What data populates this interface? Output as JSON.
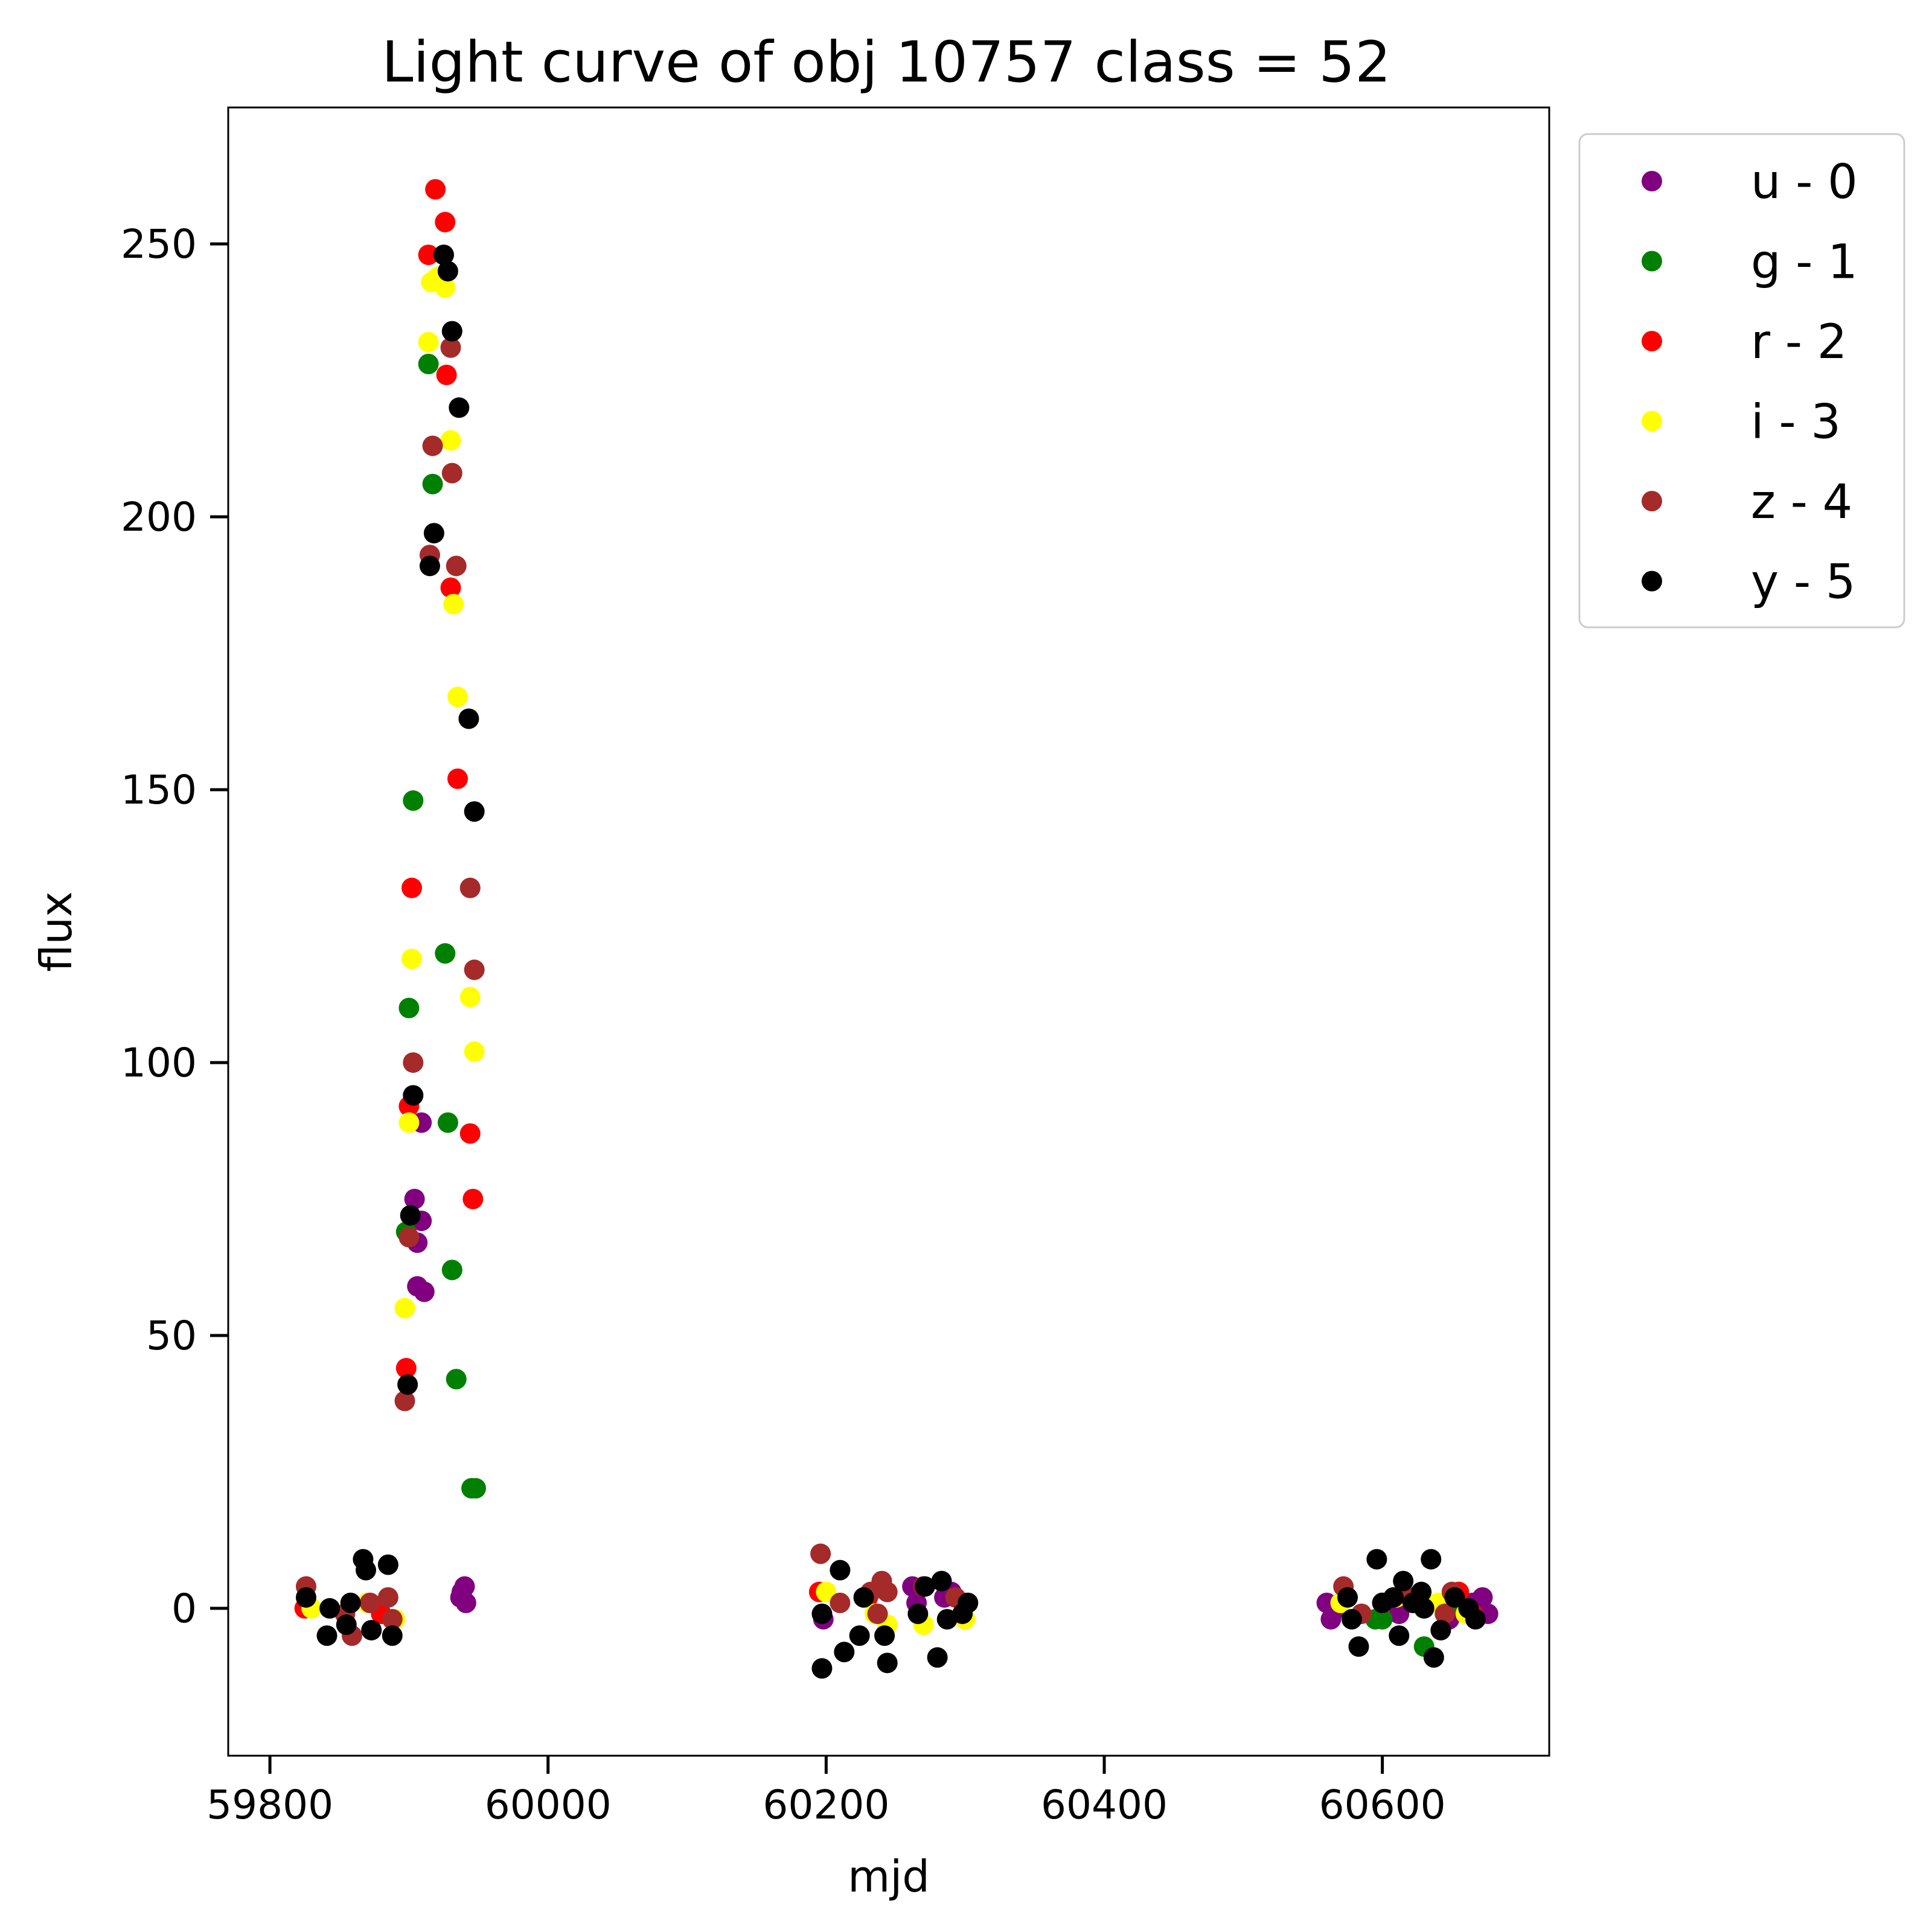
{
  "chart_data": {
    "type": "scatter",
    "title": "Light curve of obj 10757 class = 52",
    "xlabel": "mjd",
    "ylabel": "flux",
    "xlim": [
      59770,
      60720
    ],
    "ylim": [
      -27,
      275
    ],
    "xticks": [
      59800,
      60000,
      60200,
      60400,
      60600
    ],
    "yticks": [
      0,
      50,
      100,
      150,
      200,
      250
    ],
    "legend_position": "outside-upper-right",
    "series": [
      {
        "name": "u - 0",
        "color": "#800080",
        "points": [
          [
            59904,
            75
          ],
          [
            59909,
            71
          ],
          [
            59906,
            67
          ],
          [
            59906,
            59
          ],
          [
            59911,
            58
          ],
          [
            59909,
            89
          ],
          [
            59938,
            3
          ],
          [
            59940,
            4
          ],
          [
            59941,
            1
          ],
          [
            59937,
            2
          ],
          [
            60198,
            -2
          ],
          [
            60262,
            4
          ],
          [
            60265,
            1
          ],
          [
            60285,
            2
          ],
          [
            60290,
            3
          ],
          [
            60560,
            1
          ],
          [
            60563,
            -2
          ],
          [
            60568,
            0
          ],
          [
            60600,
            1
          ],
          [
            60612,
            -1
          ],
          [
            60648,
            -2
          ],
          [
            60665,
            1
          ],
          [
            60672,
            2
          ],
          [
            60676,
            -1
          ],
          [
            60655,
            0
          ]
        ]
      },
      {
        "name": "g - 1",
        "color": "#008000",
        "points": [
          [
            59914,
            228
          ],
          [
            59917,
            206
          ],
          [
            59903,
            148
          ],
          [
            59926,
            120
          ],
          [
            59900,
            110
          ],
          [
            59928,
            89
          ],
          [
            59931,
            62
          ],
          [
            59934,
            42
          ],
          [
            59945,
            22
          ],
          [
            59948,
            22
          ],
          [
            59898,
            69
          ],
          [
            60595,
            -2
          ],
          [
            60600,
            -2
          ],
          [
            60630,
            -7
          ],
          [
            60655,
            1
          ],
          [
            60660,
            0
          ]
        ]
      },
      {
        "name": "r - 2",
        "color": "#ff0000",
        "points": [
          [
            59919,
            260
          ],
          [
            59926,
            254
          ],
          [
            59914,
            248
          ],
          [
            59927,
            226
          ],
          [
            59930,
            187
          ],
          [
            59935,
            152
          ],
          [
            59902,
            132
          ],
          [
            59900,
            92
          ],
          [
            59944,
            87
          ],
          [
            59946,
            75
          ],
          [
            59898,
            44
          ],
          [
            59825,
            0
          ],
          [
            59880,
            -1
          ],
          [
            60195,
            3
          ],
          [
            60230,
            2
          ],
          [
            60300,
            1
          ],
          [
            60600,
            1
          ],
          [
            60655,
            3
          ],
          [
            60665,
            -1
          ]
        ]
      },
      {
        "name": "i - 3",
        "color": "#ffff00",
        "points": [
          [
            59916,
            243
          ],
          [
            59921,
            244
          ],
          [
            59926,
            242
          ],
          [
            59914,
            232
          ],
          [
            59930,
            214
          ],
          [
            59932,
            184
          ],
          [
            59935,
            167
          ],
          [
            59902,
            119
          ],
          [
            59944,
            112
          ],
          [
            59947,
            102
          ],
          [
            59900,
            89
          ],
          [
            59897,
            55
          ],
          [
            59830,
            0
          ],
          [
            59870,
            1
          ],
          [
            59890,
            -2
          ],
          [
            60200,
            3
          ],
          [
            60235,
            -1
          ],
          [
            60244,
            -3
          ],
          [
            60270,
            -3
          ],
          [
            60300,
            -2
          ],
          [
            60570,
            1
          ],
          [
            60610,
            2
          ],
          [
            60640,
            1
          ],
          [
            60660,
            -1
          ]
        ]
      },
      {
        "name": "z - 4",
        "color": "#a52a2a",
        "points": [
          [
            59930,
            231
          ],
          [
            59917,
            213
          ],
          [
            59931,
            208
          ],
          [
            59915,
            193
          ],
          [
            59934,
            191
          ],
          [
            59944,
            132
          ],
          [
            59947,
            117
          ],
          [
            59903,
            100
          ],
          [
            59900,
            68
          ],
          [
            59897,
            38
          ],
          [
            59826,
            4
          ],
          [
            59854,
            -1
          ],
          [
            59859,
            -5
          ],
          [
            59872,
            1
          ],
          [
            59885,
            2
          ],
          [
            59888,
            -2
          ],
          [
            60196,
            10
          ],
          [
            60210,
            1
          ],
          [
            60232,
            3
          ],
          [
            60237,
            -1
          ],
          [
            60240,
            5
          ],
          [
            60244,
            3
          ],
          [
            60270,
            4
          ],
          [
            60293,
            2
          ],
          [
            60572,
            4
          ],
          [
            60585,
            -1
          ],
          [
            60620,
            2
          ],
          [
            60645,
            -1
          ],
          [
            60650,
            3
          ]
        ]
      },
      {
        "name": "y - 5",
        "color": "#000000",
        "points": [
          [
            59925,
            248
          ],
          [
            59928,
            245
          ],
          [
            59931,
            234
          ],
          [
            59936,
            220
          ],
          [
            59918,
            197
          ],
          [
            59915,
            191
          ],
          [
            59943,
            163
          ],
          [
            59947,
            146
          ],
          [
            59903,
            94
          ],
          [
            59901,
            72
          ],
          [
            59899,
            41
          ],
          [
            59826,
            2
          ],
          [
            59841,
            -5
          ],
          [
            59843,
            0
          ],
          [
            59855,
            -3
          ],
          [
            59858,
            1
          ],
          [
            59867,
            9
          ],
          [
            59869,
            7
          ],
          [
            59873,
            -4
          ],
          [
            59885,
            8
          ],
          [
            59888,
            -5
          ],
          [
            60197,
            -1
          ],
          [
            60197,
            -11
          ],
          [
            60210,
            7
          ],
          [
            60213,
            -8
          ],
          [
            60224,
            -5
          ],
          [
            60227,
            2
          ],
          [
            60242,
            -5
          ],
          [
            60244,
            -10
          ],
          [
            60266,
            -1
          ],
          [
            60271,
            4
          ],
          [
            60280,
            -9
          ],
          [
            60283,
            5
          ],
          [
            60287,
            -2
          ],
          [
            60298,
            -1
          ],
          [
            60302,
            1
          ],
          [
            60575,
            2
          ],
          [
            60578,
            -2
          ],
          [
            60583,
            -7
          ],
          [
            60596,
            9
          ],
          [
            60600,
            1
          ],
          [
            60608,
            2
          ],
          [
            60612,
            -5
          ],
          [
            60615,
            5
          ],
          [
            60622,
            1
          ],
          [
            60628,
            3
          ],
          [
            60630,
            0
          ],
          [
            60635,
            9
          ],
          [
            60637,
            -9
          ],
          [
            60642,
            -4
          ],
          [
            60652,
            2
          ],
          [
            60662,
            0
          ],
          [
            60667,
            -2
          ]
        ]
      }
    ]
  }
}
